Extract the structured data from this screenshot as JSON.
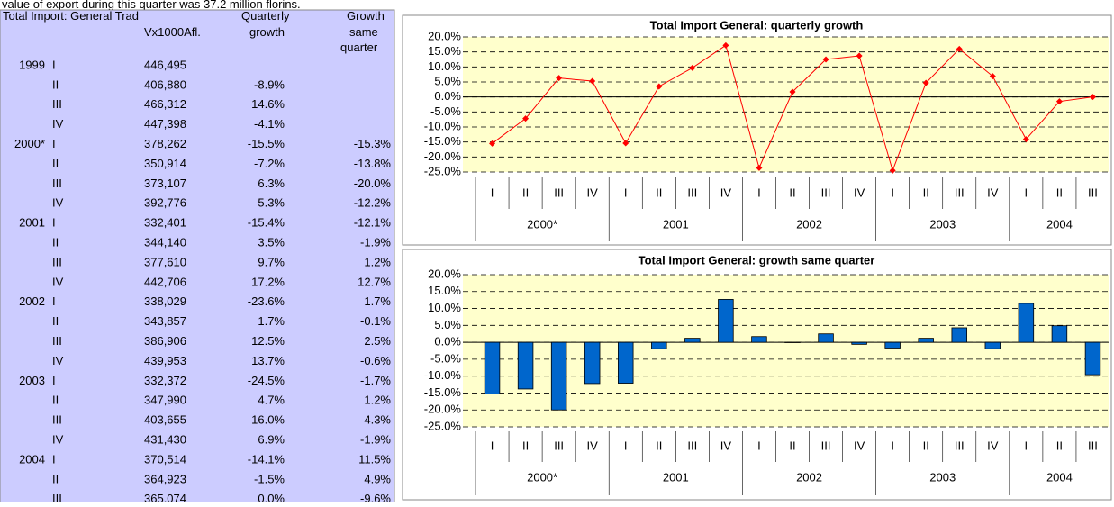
{
  "caption": "value of export during this quarter was 37.2 million florins.",
  "table": {
    "header": {
      "title": "Total Import: General Trad",
      "unit": "Vx1000Afl.",
      "quarterly": [
        "Quarterly",
        "growth"
      ],
      "same": [
        "Growth",
        "same",
        "quarter"
      ]
    },
    "rows": [
      [
        "1999",
        "I",
        "446,495",
        null,
        null
      ],
      [
        null,
        "II",
        "406,880",
        "-8.9%",
        null
      ],
      [
        null,
        "III",
        "466,312",
        "14.6%",
        null
      ],
      [
        null,
        "IV",
        "447,398",
        "-4.1%",
        null
      ],
      [
        "2000*",
        "I",
        "378,262",
        "-15.5%",
        "-15.3%"
      ],
      [
        null,
        "II",
        "350,914",
        "-7.2%",
        "-13.8%"
      ],
      [
        null,
        "III",
        "373,107",
        "6.3%",
        "-20.0%"
      ],
      [
        null,
        "IV",
        "392,776",
        "5.3%",
        "-12.2%"
      ],
      [
        "2001",
        "I",
        "332,401",
        "-15.4%",
        "-12.1%"
      ],
      [
        null,
        "II",
        "344,140",
        "3.5%",
        "-1.9%"
      ],
      [
        null,
        "III",
        "377,610",
        "9.7%",
        "1.2%"
      ],
      [
        null,
        "IV",
        "442,706",
        "17.2%",
        "12.7%"
      ],
      [
        "2002",
        "I",
        "338,029",
        "-23.6%",
        "1.7%"
      ],
      [
        null,
        "II",
        "343,857",
        "1.7%",
        "-0.1%"
      ],
      [
        null,
        "III",
        "386,906",
        "12.5%",
        "2.5%"
      ],
      [
        null,
        "IV",
        "439,953",
        "13.7%",
        "-0.6%"
      ],
      [
        "2003",
        "I",
        "332,372",
        "-24.5%",
        "-1.7%"
      ],
      [
        null,
        "II",
        "347,990",
        "4.7%",
        "1.2%"
      ],
      [
        null,
        "III",
        "403,655",
        "16.0%",
        "4.3%"
      ],
      [
        null,
        "IV",
        "431,430",
        "6.9%",
        "-1.9%"
      ],
      [
        "2004",
        "I",
        "370,514",
        "-14.1%",
        "11.5%"
      ],
      [
        null,
        "II",
        "364,923",
        "-1.5%",
        "4.9%"
      ],
      [
        null,
        "III",
        "365,074",
        "0.0%",
        "-9.6%"
      ]
    ]
  },
  "chart_data": [
    {
      "type": "line",
      "title": "Total Import General: quarterly growth",
      "categories": [
        "I",
        "II",
        "III",
        "IV",
        "I",
        "II",
        "III",
        "IV",
        "I",
        "II",
        "III",
        "IV",
        "I",
        "II",
        "III",
        "IV",
        "I",
        "II",
        "III"
      ],
      "groups": [
        "2000*",
        "2001",
        "2002",
        "2003",
        "2004"
      ],
      "values": [
        -15.5,
        -7.2,
        6.3,
        5.3,
        -15.4,
        3.5,
        9.7,
        17.2,
        -23.6,
        1.7,
        12.5,
        13.7,
        -24.5,
        4.7,
        16.0,
        6.9,
        -14.1,
        -1.5,
        0.0
      ],
      "color": "#ff0000",
      "ylim": [
        -25,
        20
      ],
      "yticks": [
        {
          "value": 20,
          "label": "20.0%"
        },
        {
          "value": 15,
          "label": "15.0%"
        },
        {
          "value": 10,
          "label": "10.0%"
        },
        {
          "value": 5,
          "label": "5.0%"
        },
        {
          "value": 0,
          "label": "0.0%"
        },
        {
          "value": -5,
          "label": "-5.0%"
        },
        {
          "value": -10,
          "label": "-10.0%"
        },
        {
          "value": -15,
          "label": "-15.0%"
        },
        {
          "value": -20,
          "label": "-20.0%"
        },
        {
          "value": -25,
          "label": "-25.0%"
        }
      ],
      "grid": true
    },
    {
      "type": "bar",
      "title": "Total Import General: growth same quarter",
      "categories": [
        "I",
        "II",
        "III",
        "IV",
        "I",
        "II",
        "III",
        "IV",
        "I",
        "II",
        "III",
        "IV",
        "I",
        "II",
        "III",
        "IV",
        "I",
        "II",
        "III"
      ],
      "groups": [
        "2000*",
        "2001",
        "2002",
        "2003",
        "2004"
      ],
      "values": [
        -15.3,
        -13.8,
        -20.0,
        -12.2,
        -12.1,
        -1.9,
        1.2,
        12.7,
        1.7,
        -0.1,
        2.5,
        -0.6,
        -1.7,
        1.2,
        4.3,
        -1.9,
        11.5,
        4.9,
        -9.6
      ],
      "color": "#0066cc",
      "ylim": [
        -25,
        20
      ],
      "yticks": [
        {
          "value": 20,
          "label": "20.0%"
        },
        {
          "value": 15,
          "label": "15.0%"
        },
        {
          "value": 10,
          "label": "10.0%"
        },
        {
          "value": 5,
          "label": "5.0%"
        },
        {
          "value": 0,
          "label": "0.0%"
        },
        {
          "value": -5,
          "label": "-5.0%"
        },
        {
          "value": -10,
          "label": "-10.0%"
        },
        {
          "value": -15,
          "label": "-15.0%"
        },
        {
          "value": -20,
          "label": "-20.0%"
        },
        {
          "value": -25,
          "label": "-25.0%"
        }
      ],
      "grid": true
    }
  ]
}
